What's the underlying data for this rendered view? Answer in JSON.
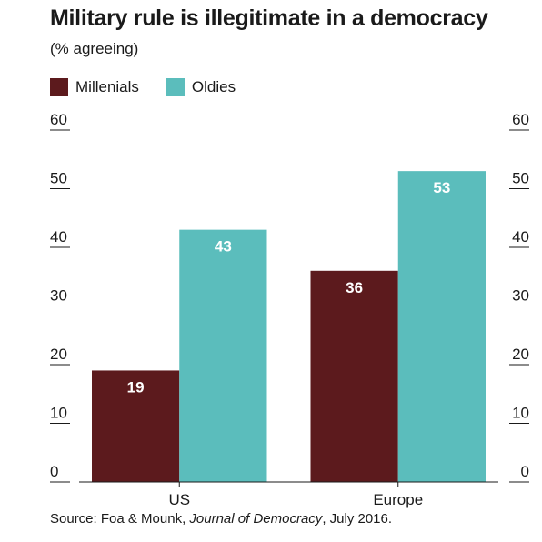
{
  "chart_data": {
    "type": "bar",
    "title": "Military rule is illegitimate in a democracy",
    "subtitle": "(% agreeing)",
    "categories": [
      "US",
      "Europe"
    ],
    "series": [
      {
        "name": "Millenials",
        "values": [
          19,
          36
        ],
        "color": "#5c1a1d"
      },
      {
        "name": "Oldies",
        "values": [
          43,
          53
        ],
        "color": "#5bbdbc"
      }
    ],
    "yticks": [
      "0",
      "10",
      "20",
      "30",
      "40",
      "50",
      "60"
    ],
    "ylim": [
      0,
      60
    ],
    "legend_position": "top-left",
    "grid": false
  },
  "source": {
    "prefix": "Source: Foa & Mounk, ",
    "journal": "Journal of Democracy",
    "suffix": ", July 2016."
  }
}
